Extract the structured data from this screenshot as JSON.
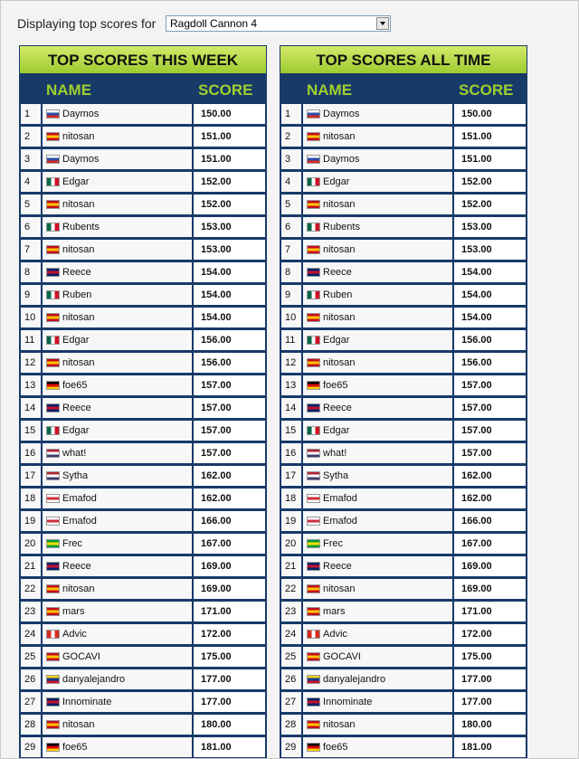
{
  "header": {
    "label": "Displaying top scores for",
    "game": "Ragdoll Cannon 4"
  },
  "tables": [
    {
      "title": "TOP SCORES THIS WEEK",
      "columns": [
        "NAME",
        "SCORE"
      ],
      "rows": [
        {
          "rank": "1",
          "name": "Daymos",
          "score": "150.00",
          "flag": [
            "#ffffff",
            "#2a4ca8",
            "#d52b1e"
          ]
        },
        {
          "rank": "2",
          "name": "nitosan",
          "score": "151.00",
          "flag": [
            "#c60b1e",
            "#ffc400",
            "#c60b1e"
          ]
        },
        {
          "rank": "3",
          "name": "Daymos",
          "score": "151.00",
          "flag": [
            "#ffffff",
            "#2a4ca8",
            "#d52b1e"
          ]
        },
        {
          "rank": "4",
          "name": "Edgar",
          "score": "152.00",
          "flag": [
            "#006847",
            "#ffffff",
            "#ce1126"
          ],
          "flag_vertical": true
        },
        {
          "rank": "5",
          "name": "nitosan",
          "score": "152.00",
          "flag": [
            "#c60b1e",
            "#ffc400",
            "#c60b1e"
          ]
        },
        {
          "rank": "6",
          "name": "Rubents",
          "score": "153.00",
          "flag": [
            "#006847",
            "#ffffff",
            "#ce1126"
          ],
          "flag_vertical": true
        },
        {
          "rank": "7",
          "name": "nitosan",
          "score": "153.00",
          "flag": [
            "#c60b1e",
            "#ffc400",
            "#c60b1e"
          ]
        },
        {
          "rank": "8",
          "name": "Reece",
          "score": "154.00",
          "flag": [
            "#012169",
            "#c8102e",
            "#012169"
          ]
        },
        {
          "rank": "9",
          "name": "Ruben",
          "score": "154.00",
          "flag": [
            "#006847",
            "#ffffff",
            "#ce1126"
          ],
          "flag_vertical": true
        },
        {
          "rank": "10",
          "name": "nitosan",
          "score": "154.00",
          "flag": [
            "#c60b1e",
            "#ffc400",
            "#c60b1e"
          ]
        },
        {
          "rank": "11",
          "name": "Edgar",
          "score": "156.00",
          "flag": [
            "#006847",
            "#ffffff",
            "#ce1126"
          ],
          "flag_vertical": true
        },
        {
          "rank": "12",
          "name": "nitosan",
          "score": "156.00",
          "flag": [
            "#c60b1e",
            "#ffc400",
            "#c60b1e"
          ]
        },
        {
          "rank": "13",
          "name": "foe65",
          "score": "157.00",
          "flag": [
            "#000000",
            "#dd0000",
            "#ffce00"
          ]
        },
        {
          "rank": "14",
          "name": "Reece",
          "score": "157.00",
          "flag": [
            "#012169",
            "#c8102e",
            "#012169"
          ]
        },
        {
          "rank": "15",
          "name": "Edgar",
          "score": "157.00",
          "flag": [
            "#006847",
            "#ffffff",
            "#ce1126"
          ],
          "flag_vertical": true
        },
        {
          "rank": "16",
          "name": "what!",
          "score": "157.00",
          "flag": [
            "#b22234",
            "#ffffff",
            "#3c3b6e"
          ]
        },
        {
          "rank": "17",
          "name": "Sytha",
          "score": "162.00",
          "flag": [
            "#b22234",
            "#ffffff",
            "#3c3b6e"
          ]
        },
        {
          "rank": "18",
          "name": "Emafod",
          "score": "162.00",
          "flag": [
            "#ffffff",
            "#cd2e3a",
            "#ffffff"
          ]
        },
        {
          "rank": "19",
          "name": "Emafod",
          "score": "166.00",
          "flag": [
            "#ffffff",
            "#cd2e3a",
            "#ffffff"
          ]
        },
        {
          "rank": "20",
          "name": "Frec",
          "score": "167.00",
          "flag": [
            "#009c3b",
            "#ffdf00",
            "#009c3b"
          ]
        },
        {
          "rank": "21",
          "name": "Reece",
          "score": "169.00",
          "flag": [
            "#012169",
            "#c8102e",
            "#012169"
          ]
        },
        {
          "rank": "22",
          "name": "nitosan",
          "score": "169.00",
          "flag": [
            "#c60b1e",
            "#ffc400",
            "#c60b1e"
          ]
        },
        {
          "rank": "23",
          "name": "mars",
          "score": "171.00",
          "flag": [
            "#c60b1e",
            "#ffc400",
            "#c60b1e"
          ]
        },
        {
          "rank": "24",
          "name": "Advic",
          "score": "172.00",
          "flag": [
            "#d52b1e",
            "#ffffff",
            "#d52b1e"
          ],
          "flag_vertical": true
        },
        {
          "rank": "25",
          "name": "GOCAVI",
          "score": "175.00",
          "flag": [
            "#c60b1e",
            "#ffc400",
            "#c60b1e"
          ]
        },
        {
          "rank": "26",
          "name": "danyalejandro",
          "score": "177.00",
          "flag": [
            "#fcd116",
            "#003893",
            "#ce1126"
          ]
        },
        {
          "rank": "27",
          "name": "Innominate",
          "score": "177.00",
          "flag": [
            "#012169",
            "#c8102e",
            "#012169"
          ]
        },
        {
          "rank": "28",
          "name": "nitosan",
          "score": "180.00",
          "flag": [
            "#c60b1e",
            "#ffc400",
            "#c60b1e"
          ]
        },
        {
          "rank": "29",
          "name": "foe65",
          "score": "181.00",
          "flag": [
            "#000000",
            "#dd0000",
            "#ffce00"
          ]
        }
      ]
    },
    {
      "title": "TOP SCORES ALL TIME",
      "columns": [
        "NAME",
        "SCORE"
      ],
      "rows": [
        {
          "rank": "1",
          "name": "Daymos",
          "score": "150.00",
          "flag": [
            "#ffffff",
            "#2a4ca8",
            "#d52b1e"
          ]
        },
        {
          "rank": "2",
          "name": "nitosan",
          "score": "151.00",
          "flag": [
            "#c60b1e",
            "#ffc400",
            "#c60b1e"
          ]
        },
        {
          "rank": "3",
          "name": "Daymos",
          "score": "151.00",
          "flag": [
            "#ffffff",
            "#2a4ca8",
            "#d52b1e"
          ]
        },
        {
          "rank": "4",
          "name": "Edgar",
          "score": "152.00",
          "flag": [
            "#006847",
            "#ffffff",
            "#ce1126"
          ],
          "flag_vertical": true
        },
        {
          "rank": "5",
          "name": "nitosan",
          "score": "152.00",
          "flag": [
            "#c60b1e",
            "#ffc400",
            "#c60b1e"
          ]
        },
        {
          "rank": "6",
          "name": "Rubents",
          "score": "153.00",
          "flag": [
            "#006847",
            "#ffffff",
            "#ce1126"
          ],
          "flag_vertical": true
        },
        {
          "rank": "7",
          "name": "nitosan",
          "score": "153.00",
          "flag": [
            "#c60b1e",
            "#ffc400",
            "#c60b1e"
          ]
        },
        {
          "rank": "8",
          "name": "Reece",
          "score": "154.00",
          "flag": [
            "#012169",
            "#c8102e",
            "#012169"
          ]
        },
        {
          "rank": "9",
          "name": "Ruben",
          "score": "154.00",
          "flag": [
            "#006847",
            "#ffffff",
            "#ce1126"
          ],
          "flag_vertical": true
        },
        {
          "rank": "10",
          "name": "nitosan",
          "score": "154.00",
          "flag": [
            "#c60b1e",
            "#ffc400",
            "#c60b1e"
          ]
        },
        {
          "rank": "11",
          "name": "Edgar",
          "score": "156.00",
          "flag": [
            "#006847",
            "#ffffff",
            "#ce1126"
          ],
          "flag_vertical": true
        },
        {
          "rank": "12",
          "name": "nitosan",
          "score": "156.00",
          "flag": [
            "#c60b1e",
            "#ffc400",
            "#c60b1e"
          ]
        },
        {
          "rank": "13",
          "name": "foe65",
          "score": "157.00",
          "flag": [
            "#000000",
            "#dd0000",
            "#ffce00"
          ]
        },
        {
          "rank": "14",
          "name": "Reece",
          "score": "157.00",
          "flag": [
            "#012169",
            "#c8102e",
            "#012169"
          ]
        },
        {
          "rank": "15",
          "name": "Edgar",
          "score": "157.00",
          "flag": [
            "#006847",
            "#ffffff",
            "#ce1126"
          ],
          "flag_vertical": true
        },
        {
          "rank": "16",
          "name": "what!",
          "score": "157.00",
          "flag": [
            "#b22234",
            "#ffffff",
            "#3c3b6e"
          ]
        },
        {
          "rank": "17",
          "name": "Sytha",
          "score": "162.00",
          "flag": [
            "#b22234",
            "#ffffff",
            "#3c3b6e"
          ]
        },
        {
          "rank": "18",
          "name": "Emafod",
          "score": "162.00",
          "flag": [
            "#ffffff",
            "#cd2e3a",
            "#ffffff"
          ]
        },
        {
          "rank": "19",
          "name": "Emafod",
          "score": "166.00",
          "flag": [
            "#ffffff",
            "#cd2e3a",
            "#ffffff"
          ]
        },
        {
          "rank": "20",
          "name": "Frec",
          "score": "167.00",
          "flag": [
            "#009c3b",
            "#ffdf00",
            "#009c3b"
          ]
        },
        {
          "rank": "21",
          "name": "Reece",
          "score": "169.00",
          "flag": [
            "#012169",
            "#c8102e",
            "#012169"
          ]
        },
        {
          "rank": "22",
          "name": "nitosan",
          "score": "169.00",
          "flag": [
            "#c60b1e",
            "#ffc400",
            "#c60b1e"
          ]
        },
        {
          "rank": "23",
          "name": "mars",
          "score": "171.00",
          "flag": [
            "#c60b1e",
            "#ffc400",
            "#c60b1e"
          ]
        },
        {
          "rank": "24",
          "name": "Advic",
          "score": "172.00",
          "flag": [
            "#d52b1e",
            "#ffffff",
            "#d52b1e"
          ],
          "flag_vertical": true
        },
        {
          "rank": "25",
          "name": "GOCAVI",
          "score": "175.00",
          "flag": [
            "#c60b1e",
            "#ffc400",
            "#c60b1e"
          ]
        },
        {
          "rank": "26",
          "name": "danyalejandro",
          "score": "177.00",
          "flag": [
            "#fcd116",
            "#003893",
            "#ce1126"
          ]
        },
        {
          "rank": "27",
          "name": "Innominate",
          "score": "177.00",
          "flag": [
            "#012169",
            "#c8102e",
            "#012169"
          ]
        },
        {
          "rank": "28",
          "name": "nitosan",
          "score": "180.00",
          "flag": [
            "#c60b1e",
            "#ffc400",
            "#c60b1e"
          ]
        },
        {
          "rank": "29",
          "name": "foe65",
          "score": "181.00",
          "flag": [
            "#000000",
            "#dd0000",
            "#ffce00"
          ]
        }
      ]
    }
  ]
}
